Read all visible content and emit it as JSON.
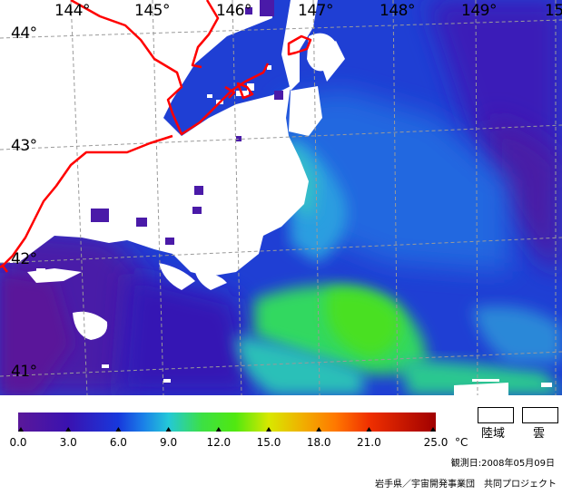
{
  "map": {
    "longitude_labels": [
      "144°",
      "145°",
      "146°",
      "147°",
      "148°",
      "149°",
      "15"
    ],
    "latitude_labels": [
      "44°",
      "43°",
      "42°",
      "41°"
    ],
    "colors": {
      "land": "#ffffff",
      "cloud": "#ffffff",
      "coastline": "#ff0000",
      "graticule": "#9a9a9a"
    }
  },
  "legend": {
    "tick_labels": [
      "0.0",
      "3.0",
      "6.0",
      "9.0",
      "12.0",
      "15.0",
      "18.0",
      "21.0",
      "25.0"
    ],
    "tick_values": [
      0,
      3,
      6,
      9,
      12,
      15,
      18,
      21,
      25
    ],
    "unit": "°C",
    "range": [
      0,
      25
    ],
    "color_stops": [
      {
        "value": 0,
        "color": "#5a189a"
      },
      {
        "value": 3,
        "color": "#3a12b0"
      },
      {
        "value": 6,
        "color": "#1838dc"
      },
      {
        "value": 7.5,
        "color": "#1a80e8"
      },
      {
        "value": 9,
        "color": "#24c8d8"
      },
      {
        "value": 11,
        "color": "#3ce044"
      },
      {
        "value": 13,
        "color": "#50e810"
      },
      {
        "value": 15,
        "color": "#d8e800"
      },
      {
        "value": 17,
        "color": "#f0b000"
      },
      {
        "value": 19,
        "color": "#ff7800"
      },
      {
        "value": 21,
        "color": "#f03000"
      },
      {
        "value": 25,
        "color": "#a00000"
      }
    ],
    "land_label": "陸域",
    "cloud_label": "雲"
  },
  "observation_date": "観測日:2008年05月09日",
  "credit": "岩手県／宇宙開発事業団　共同プロジェクト"
}
